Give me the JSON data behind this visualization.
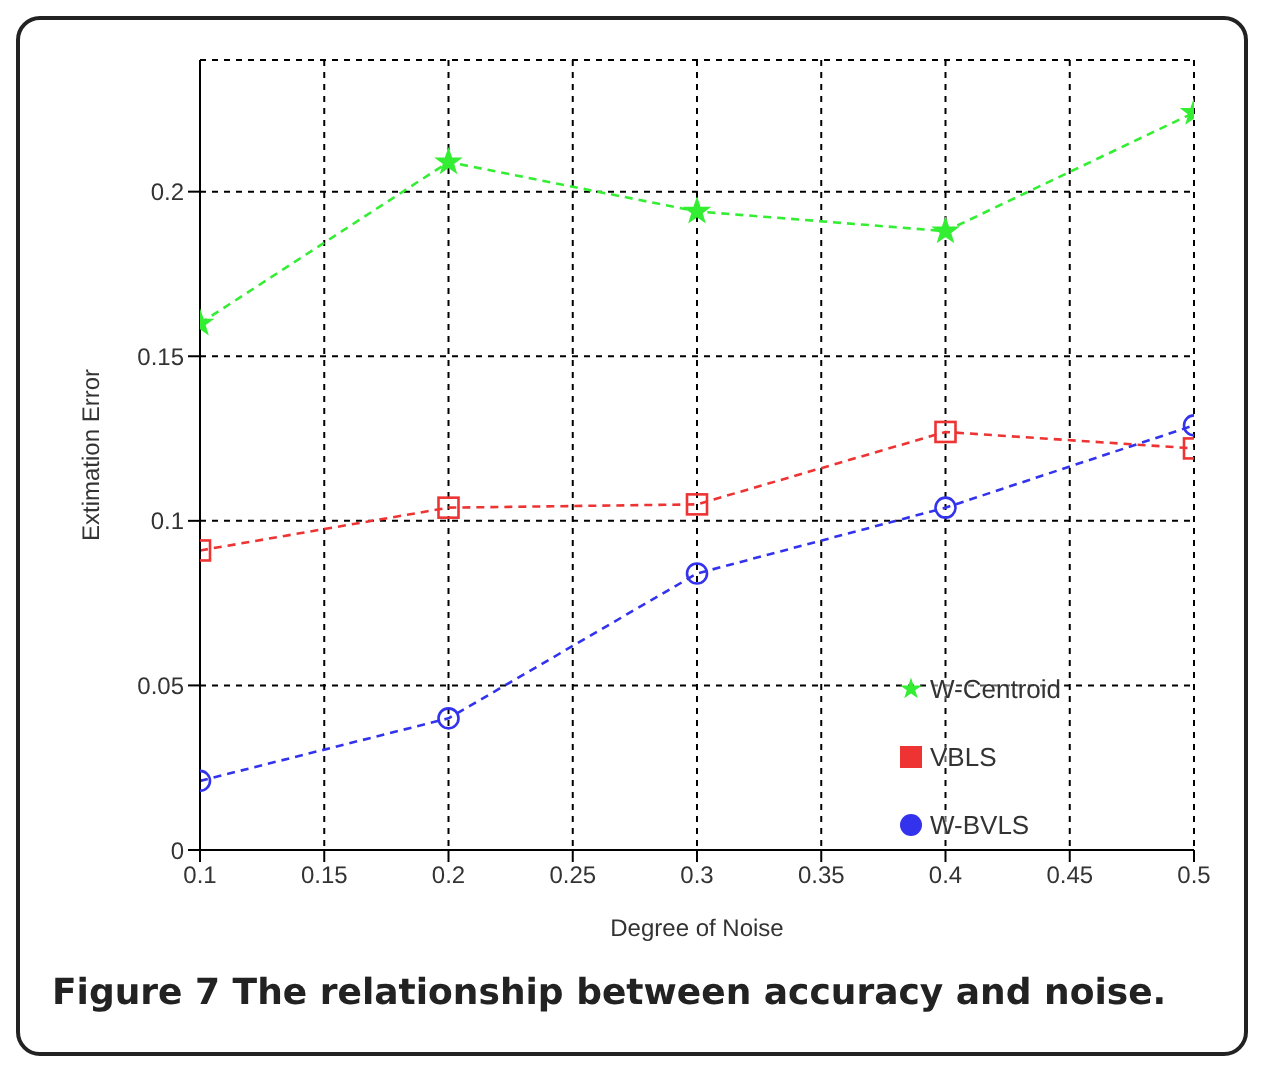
{
  "chart_data": {
    "type": "line",
    "title": "Figure 7 The relationship between accuracy and noise.",
    "xlabel": "Degree of Noise",
    "ylabel": "Extimation Error",
    "x": [
      0.1,
      0.2,
      0.3,
      0.4,
      0.5
    ],
    "series": [
      {
        "name": "W-Centroid",
        "color": "#33ee33",
        "marker": "star",
        "values": [
          0.16,
          0.209,
          0.194,
          0.188,
          0.224
        ]
      },
      {
        "name": "VBLS",
        "color": "#ee3333",
        "marker": "square",
        "values": [
          0.091,
          0.104,
          0.105,
          0.127,
          0.122
        ]
      },
      {
        "name": "W-BVLS",
        "color": "#3333ee",
        "marker": "circle",
        "values": [
          0.021,
          0.04,
          0.084,
          0.104,
          0.129
        ]
      }
    ],
    "xlim": [
      0.1,
      0.5
    ],
    "xticks": [
      0.1,
      0.15,
      0.2,
      0.25,
      0.3,
      0.35,
      0.4,
      0.45,
      0.5
    ],
    "ylim": [
      0,
      0.24
    ],
    "yticks": [
      0,
      0.05,
      0.1,
      0.15,
      0.2
    ],
    "grid": true,
    "legend": "bottom right",
    "line_style": "dashed"
  }
}
